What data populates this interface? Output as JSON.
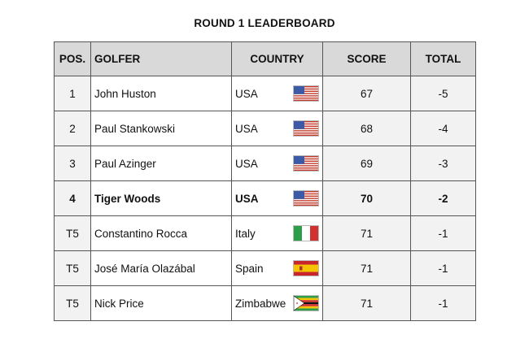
{
  "title": "ROUND 1 LEADERBOARD",
  "headers": {
    "pos": "POS.",
    "golfer": "GOLFER",
    "country": "COUNTRY",
    "score": "SCORE",
    "total": "TOTAL"
  },
  "colors": {
    "header_bg": "#d9d9d9",
    "cell_bg": "#f2f2f2",
    "border": "#555555"
  },
  "rows": [
    {
      "pos": "1",
      "golfer": "John Huston",
      "country": "USA",
      "flag": "usa-flag-icon",
      "score": "67",
      "total": "-5",
      "bold": false
    },
    {
      "pos": "2",
      "golfer": "Paul Stankowski",
      "country": "USA",
      "flag": "usa-flag-icon",
      "score": "68",
      "total": "-4",
      "bold": false
    },
    {
      "pos": "3",
      "golfer": "Paul Azinger",
      "country": "USA",
      "flag": "usa-flag-icon",
      "score": "69",
      "total": "-3",
      "bold": false
    },
    {
      "pos": "4",
      "golfer": "Tiger Woods",
      "country": "USA",
      "flag": "usa-flag-icon",
      "score": "70",
      "total": "-2",
      "bold": true
    },
    {
      "pos": "T5",
      "golfer": "Constantino Rocca",
      "country": "Italy",
      "flag": "italy-flag-icon",
      "score": "71",
      "total": "-1",
      "bold": false
    },
    {
      "pos": "T5",
      "golfer": "José María Olazábal",
      "country": "Spain",
      "flag": "spain-flag-icon",
      "score": "71",
      "total": "-1",
      "bold": false
    },
    {
      "pos": "T5",
      "golfer": "Nick Price",
      "country": "Zimbabwe",
      "flag": "zimbabwe-flag-icon",
      "score": "71",
      "total": "-1",
      "bold": false
    }
  ]
}
